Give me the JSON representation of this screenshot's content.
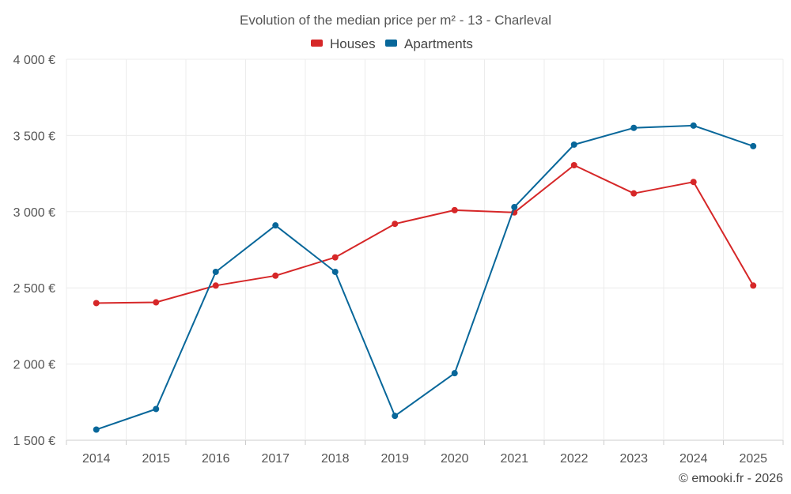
{
  "chart_data": {
    "type": "line",
    "title": "Evolution of the median price per m² - 13 - Charleval",
    "categories": [
      "2014",
      "2015",
      "2016",
      "2017",
      "2018",
      "2019",
      "2020",
      "2021",
      "2022",
      "2023",
      "2024",
      "2025"
    ],
    "series": [
      {
        "name": "Houses",
        "color": "#d62728",
        "values": [
          2400,
          2405,
          2515,
          2580,
          2700,
          2920,
          3010,
          2995,
          3305,
          3120,
          3195,
          2515
        ]
      },
      {
        "name": "Apartments",
        "color": "#08679a",
        "values": [
          1570,
          1705,
          2605,
          2910,
          2605,
          1660,
          1940,
          3030,
          3440,
          3550,
          3565,
          3430
        ]
      }
    ],
    "ylim": [
      1500,
      4000
    ],
    "yticks": [
      1500,
      2000,
      2500,
      3000,
      3500,
      4000
    ],
    "ytick_labels": [
      "1 500 €",
      "2 000 €",
      "2 500 €",
      "3 000 €",
      "3 500 €",
      "4 000 €"
    ],
    "xlabel": "",
    "ylabel": "",
    "grid": true,
    "legend_position": "top-center"
  },
  "credit": "© emooki.fr - 2026"
}
